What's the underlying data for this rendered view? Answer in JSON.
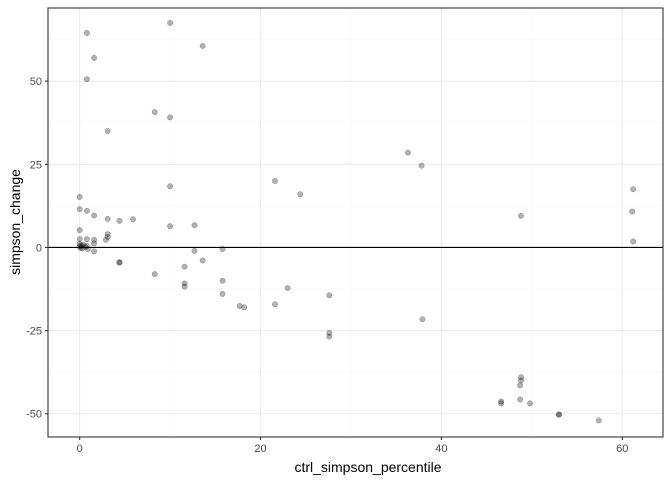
{
  "chart_data": {
    "type": "scatter",
    "title": "",
    "xlabel": "ctrl_simpson_percentile",
    "ylabel": "simpson_change",
    "xlim": [
      -3.5,
      64.5
    ],
    "ylim": [
      -57,
      72
    ],
    "x_ticks": [
      0,
      20,
      40,
      60
    ],
    "x_tick_labels": [
      "0",
      "20",
      "40",
      "60"
    ],
    "y_ticks": [
      -50,
      -25,
      0,
      25,
      50
    ],
    "y_tick_labels": [
      "-50",
      "-25",
      "0",
      "25",
      "50"
    ],
    "hline": 0,
    "grid": true,
    "legend": "none",
    "colors": {
      "point_fill": "#000000",
      "point_fill_opacity": 0.3,
      "panel_border": "#333333",
      "grid_major": "#ebebeb",
      "grid_minor": "#f5f5f5",
      "hline": "#000000"
    },
    "points": [
      {
        "x": 0.8,
        "y": 64.5
      },
      {
        "x": 10.0,
        "y": 67.5
      },
      {
        "x": 13.6,
        "y": 60.6
      },
      {
        "x": 1.6,
        "y": 57.0
      },
      {
        "x": 0.8,
        "y": 50.6
      },
      {
        "x": 8.3,
        "y": 40.7
      },
      {
        "x": 10.0,
        "y": 39.1
      },
      {
        "x": 3.1,
        "y": 35.0
      },
      {
        "x": 36.3,
        "y": 28.5
      },
      {
        "x": 37.8,
        "y": 24.6
      },
      {
        "x": 21.6,
        "y": 20.0
      },
      {
        "x": 10.0,
        "y": 18.4
      },
      {
        "x": 24.4,
        "y": 16.0
      },
      {
        "x": 0.0,
        "y": 15.2
      },
      {
        "x": 61.2,
        "y": 17.5
      },
      {
        "x": 0.0,
        "y": 11.5
      },
      {
        "x": 0.8,
        "y": 11.0
      },
      {
        "x": 1.6,
        "y": 9.6
      },
      {
        "x": 3.1,
        "y": 8.6
      },
      {
        "x": 4.4,
        "y": 8.0
      },
      {
        "x": 5.9,
        "y": 8.5
      },
      {
        "x": 48.8,
        "y": 9.5
      },
      {
        "x": 61.1,
        "y": 10.8
      },
      {
        "x": 10.0,
        "y": 6.4
      },
      {
        "x": 12.7,
        "y": 6.7
      },
      {
        "x": 0.0,
        "y": 5.2
      },
      {
        "x": 3.1,
        "y": 4.0
      },
      {
        "x": 3.1,
        "y": 3.2
      },
      {
        "x": 0.0,
        "y": 2.5
      },
      {
        "x": 0.8,
        "y": 2.5
      },
      {
        "x": 1.6,
        "y": 2.3
      },
      {
        "x": 2.9,
        "y": 2.3
      },
      {
        "x": 61.2,
        "y": 1.8
      },
      {
        "x": 0.0,
        "y": 1.0
      },
      {
        "x": 0.2,
        "y": 0.6
      },
      {
        "x": 0.4,
        "y": 0.8
      },
      {
        "x": 0.6,
        "y": 0.2
      },
      {
        "x": 0.3,
        "y": -0.3
      },
      {
        "x": 0.0,
        "y": 0.3
      },
      {
        "x": 0.8,
        "y": 0.4
      },
      {
        "x": 0.1,
        "y": -0.1
      },
      {
        "x": 1.6,
        "y": 1.2
      },
      {
        "x": 0.9,
        "y": -0.5
      },
      {
        "x": 1.6,
        "y": -1.2
      },
      {
        "x": 12.7,
        "y": -1.0
      },
      {
        "x": 15.8,
        "y": -0.5
      },
      {
        "x": 4.4,
        "y": -4.4
      },
      {
        "x": 4.4,
        "y": -4.6
      },
      {
        "x": 13.6,
        "y": -3.9
      },
      {
        "x": 11.6,
        "y": -5.8
      },
      {
        "x": 8.3,
        "y": -8.0
      },
      {
        "x": 15.8,
        "y": -10.0
      },
      {
        "x": 11.6,
        "y": -10.8
      },
      {
        "x": 11.6,
        "y": -11.8
      },
      {
        "x": 23.0,
        "y": -12.2
      },
      {
        "x": 15.8,
        "y": -14.0
      },
      {
        "x": 27.6,
        "y": -14.4
      },
      {
        "x": 21.6,
        "y": -17.1
      },
      {
        "x": 17.7,
        "y": -17.6
      },
      {
        "x": 18.2,
        "y": -18.0
      },
      {
        "x": 37.9,
        "y": -21.6
      },
      {
        "x": 27.6,
        "y": -25.7
      },
      {
        "x": 27.6,
        "y": -26.8
      },
      {
        "x": 48.8,
        "y": -39.0
      },
      {
        "x": 48.8,
        "y": -40.0
      },
      {
        "x": 48.7,
        "y": -41.5
      },
      {
        "x": 48.7,
        "y": -45.7
      },
      {
        "x": 46.6,
        "y": -46.3
      },
      {
        "x": 46.6,
        "y": -46.9
      },
      {
        "x": 49.8,
        "y": -46.9
      },
      {
        "x": 53.0,
        "y": -50.2
      },
      {
        "x": 53.0,
        "y": -50.3
      },
      {
        "x": 57.4,
        "y": -52.0
      }
    ]
  }
}
